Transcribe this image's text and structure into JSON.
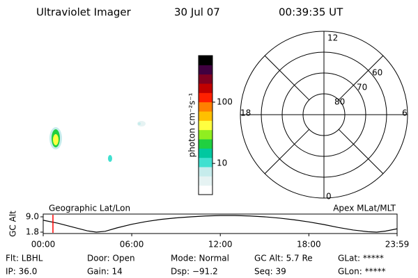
{
  "header": {
    "title": "Ultraviolet Imager",
    "date": "30 Jul 07",
    "time": "00:39:35 UT"
  },
  "colorbar": {
    "label": "photon cm⁻²s⁻¹",
    "log_scale": true,
    "lim": [
      3.1,
      575
    ],
    "ticks": [
      100,
      10
    ],
    "colors": [
      "#ffffff",
      "#e6f3f3",
      "#c6ecec",
      "#40e0d0",
      "#00c8a0",
      "#20d040",
      "#90ee20",
      "#ffff40",
      "#ffc000",
      "#ff8000",
      "#ff2000",
      "#c00000",
      "#800020",
      "#400040",
      "#000000"
    ]
  },
  "polar": {
    "mlt_labels": {
      "top": "12",
      "left": "18",
      "right": "6",
      "bottom": "0"
    },
    "lat_labels": [
      "80",
      "70",
      "60"
    ]
  },
  "timeline": {
    "type": "line",
    "left_label": "Geographic Lat/Lon",
    "right_label": "Apex MLat/MLT",
    "ylabel": "GC Alt",
    "x": [
      0,
      1,
      2,
      3,
      3.6,
      4.2,
      5,
      6,
      7,
      8,
      9,
      10,
      11,
      12,
      13,
      14,
      15,
      16,
      17,
      18,
      19,
      20,
      21,
      22,
      22.6,
      23.2,
      24
    ],
    "values": [
      7.4,
      6.0,
      4.2,
      2.4,
      1.8,
      2.2,
      3.8,
      5.5,
      6.8,
      7.8,
      8.5,
      9.0,
      9.4,
      9.6,
      9.6,
      9.4,
      9.0,
      8.4,
      7.6,
      6.6,
      5.4,
      4.0,
      2.8,
      2.0,
      1.8,
      2.3,
      3.4
    ],
    "color": "#000000",
    "xlim": [
      0,
      23.98
    ],
    "ylim": [
      1.15,
      10.3
    ],
    "xticks": [
      {
        "value": 0,
        "label": "00:00"
      },
      {
        "value": 6,
        "label": "06:00"
      },
      {
        "value": 12,
        "label": "12:00"
      },
      {
        "value": 18,
        "label": "18:00"
      },
      {
        "value": 23.98,
        "label": "23:59"
      }
    ],
    "yticks": [
      {
        "value": 9.0,
        "label": "9.0"
      },
      {
        "value": 1.8,
        "label": "1.8"
      }
    ],
    "current_time": 0.66,
    "marker_color": "#ff0000"
  },
  "footer": {
    "rows": [
      [
        "Flt: LBHL",
        "Door: Open",
        "Mode: Normal",
        "GC Alt: 5.7 Re",
        "GLat: *****"
      ],
      [
        "IP: 36.0",
        "Gain: 14",
        "Dsp: −91.2",
        "Seq: 39",
        "GLon: *****"
      ]
    ]
  }
}
